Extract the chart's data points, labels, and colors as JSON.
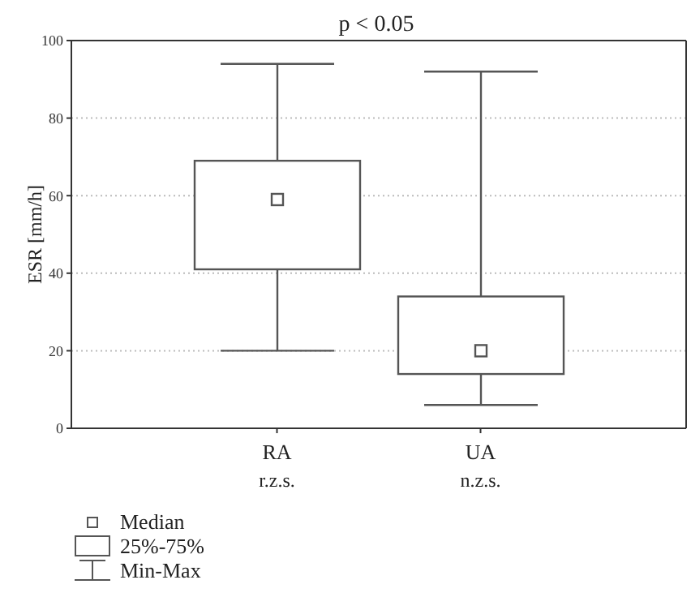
{
  "chart_data": {
    "type": "box",
    "title": "p < 0.05",
    "ylabel": "ESR [mm/h]",
    "categories": [
      "RA\nr.z.s.",
      "UA\nn.z.s."
    ],
    "boxes": [
      {
        "low": 20,
        "q1": 41,
        "median": 59,
        "q3": 69,
        "high": 94
      },
      {
        "low": 6,
        "q1": 14,
        "median": 20,
        "q3": 34,
        "high": 92
      }
    ],
    "color": "#555555",
    "ylim": [
      0,
      100
    ],
    "yticks": [
      0,
      20,
      40,
      60,
      80,
      100
    ],
    "grid": "y",
    "annotations": [
      "Median",
      "25%-75%",
      "Min-Max"
    ]
  }
}
